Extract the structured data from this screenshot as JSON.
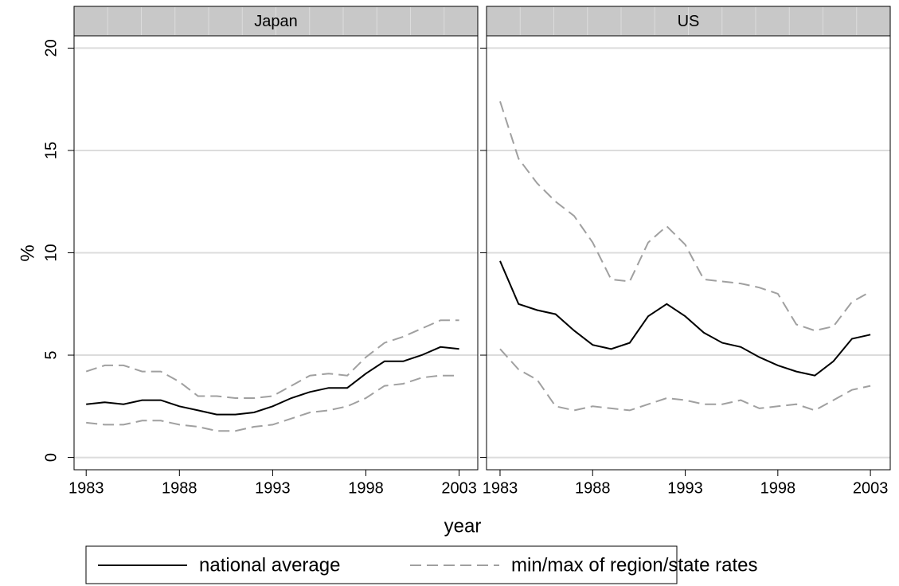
{
  "chart_data": [
    {
      "type": "line",
      "title": "Japan",
      "x": [
        1983,
        1984,
        1985,
        1986,
        1987,
        1988,
        1989,
        1990,
        1991,
        1992,
        1993,
        1994,
        1995,
        1996,
        1997,
        1998,
        1999,
        2000,
        2001,
        2002,
        2003
      ],
      "series": [
        {
          "name": "national average",
          "color": "#000000",
          "dashed": false,
          "values": [
            2.6,
            2.7,
            2.6,
            2.8,
            2.8,
            2.5,
            2.3,
            2.1,
            2.1,
            2.2,
            2.5,
            2.9,
            3.2,
            3.4,
            3.4,
            4.1,
            4.7,
            4.7,
            5.0,
            5.4,
            5.3
          ]
        },
        {
          "name": "min/max of region/state rates",
          "color": "#a0a0a0",
          "dashed": true,
          "max": [
            4.2,
            4.5,
            4.5,
            4.2,
            4.2,
            3.7,
            3.0,
            3.0,
            2.9,
            2.9,
            3.0,
            3.5,
            4.0,
            4.1,
            4.0,
            4.9,
            5.6,
            5.9,
            6.3,
            6.7,
            6.7
          ],
          "min": [
            1.7,
            1.6,
            1.6,
            1.8,
            1.8,
            1.6,
            1.5,
            1.3,
            1.3,
            1.5,
            1.6,
            1.9,
            2.2,
            2.3,
            2.5,
            2.9,
            3.5,
            3.6,
            3.9,
            4.0,
            4.0
          ]
        }
      ],
      "xlim": [
        1982.35,
        2004.0
      ],
      "xticks": [
        1983,
        1988,
        1993,
        1998,
        2003
      ],
      "ylim": [
        -0.6,
        20.6
      ],
      "yticks": [
        0,
        5,
        10,
        15,
        20
      ],
      "grid": true
    },
    {
      "type": "line",
      "title": "US",
      "x": [
        1983,
        1984,
        1985,
        1986,
        1987,
        1988,
        1989,
        1990,
        1991,
        1992,
        1993,
        1994,
        1995,
        1996,
        1997,
        1998,
        1999,
        2000,
        2001,
        2002,
        2003
      ],
      "series": [
        {
          "name": "national average",
          "color": "#000000",
          "dashed": false,
          "values": [
            9.6,
            7.5,
            7.2,
            7.0,
            6.2,
            5.5,
            5.3,
            5.6,
            6.9,
            7.5,
            6.9,
            6.1,
            5.6,
            5.4,
            4.9,
            4.5,
            4.2,
            4.0,
            4.7,
            5.8,
            6.0
          ]
        },
        {
          "name": "min/max of region/state rates",
          "color": "#a0a0a0",
          "dashed": true,
          "max": [
            17.4,
            14.6,
            13.4,
            12.5,
            11.8,
            10.5,
            8.7,
            8.6,
            10.5,
            11.3,
            10.4,
            8.7,
            8.6,
            8.5,
            8.3,
            8.0,
            6.5,
            6.2,
            6.4,
            7.6,
            8.1
          ],
          "min": [
            5.3,
            4.3,
            3.8,
            2.5,
            2.3,
            2.5,
            2.4,
            2.3,
            2.6,
            2.9,
            2.8,
            2.6,
            2.6,
            2.8,
            2.4,
            2.5,
            2.6,
            2.3,
            2.8,
            3.3,
            3.5
          ]
        }
      ],
      "xlim": [
        1982.27,
        2004.07
      ],
      "xticks": [
        1983,
        1988,
        1993,
        1998,
        2003
      ],
      "ylim": [
        -0.6,
        20.6
      ],
      "yticks": [
        0,
        5,
        10,
        15,
        20
      ],
      "grid": true
    }
  ],
  "y_label": "%",
  "x_label": "year"
}
